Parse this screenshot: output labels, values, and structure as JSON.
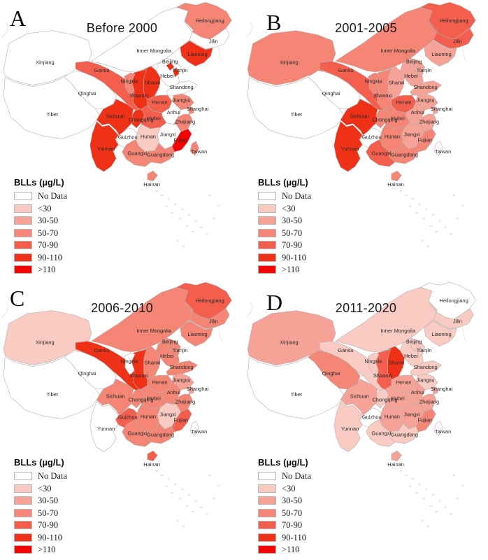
{
  "legend": {
    "title": "BLLs (µg/L)",
    "items": [
      {
        "label": "No Data",
        "category": "nodata",
        "color": "#FFFFFF"
      },
      {
        "label": "<30",
        "category": "lt30",
        "color": "#F9CBC2"
      },
      {
        "label": "30-50",
        "category": "c30_50",
        "color": "#F7A296"
      },
      {
        "label": "50-70",
        "category": "c50_70",
        "color": "#F58575"
      },
      {
        "label": "70-90",
        "category": "c70_90",
        "color": "#F35E4D"
      },
      {
        "label": "90-110",
        "category": "c90_110",
        "color": "#EF3118"
      },
      {
        "label": ">110",
        "category": "gt110",
        "color": "#F80000"
      }
    ]
  },
  "provinces": [
    "Xinjiang",
    "Tibet",
    "Qinghai",
    "Gansu",
    "Inner Mongolia",
    "Heilongjiang",
    "Jilin",
    "Liaoning",
    "Hebei",
    "Shanxi",
    "Shaanxi",
    "Ningxia",
    "Shandong",
    "Henan",
    "Jiangsu",
    "Anhui",
    "Hubei",
    "Sichuan",
    "Chongqing",
    "Guizhou",
    "Yunnan",
    "Hunan",
    "Jiangxi",
    "Zhejiang",
    "Fujian",
    "Taiwan",
    "Guangdong",
    "Guangxi",
    "Hainan",
    "Beijing",
    "Tianjin",
    "Shanghai"
  ],
  "panels": [
    {
      "letter": "A",
      "title": "Before 2000",
      "categories": {
        "Xinjiang": "nodata",
        "Tibet": "nodata",
        "Qinghai": "nodata",
        "Gansu": "c70_90",
        "Inner Mongolia": "nodata",
        "Heilongjiang": "c50_70",
        "Jilin": "nodata",
        "Liaoning": "c90_110",
        "Hebei": "nodata",
        "Shanxi": "c90_110",
        "Shaanxi": "c90_110",
        "Ningxia": "c50_70",
        "Shandong": "nodata",
        "Henan": "c70_90",
        "Jiangsu": "c50_70",
        "Anhui": "nodata",
        "Hubei": "c70_90",
        "Sichuan": "c90_110",
        "Chongqing": "c90_110",
        "Guizhou": "nodata",
        "Yunnan": "c90_110",
        "Hunan": "lt30",
        "Jiangxi": "nodata",
        "Zhejiang": "c50_70",
        "Fujian": "gt110",
        "Taiwan": "c50_70",
        "Guangdong": "c50_70",
        "Guangxi": "c50_70",
        "Hainan": "c50_70",
        "Beijing": "c90_110",
        "Tianjin": "c90_110",
        "Shanghai": "c50_70"
      }
    },
    {
      "letter": "B",
      "title": "2001-2005",
      "categories": {
        "Xinjiang": "c50_70",
        "Tibet": "nodata",
        "Qinghai": "nodata",
        "Gansu": "c70_90",
        "Inner Mongolia": "c50_70",
        "Heilongjiang": "c70_90",
        "Jilin": "c70_90",
        "Liaoning": "c30_50",
        "Hebei": "c30_50",
        "Shanxi": "c30_50",
        "Shaanxi": "c50_70",
        "Ningxia": "c50_70",
        "Shandong": "c30_50",
        "Henan": "c70_90",
        "Jiangsu": "c30_50",
        "Anhui": "c30_50",
        "Hubei": "c50_70",
        "Sichuan": "c90_110",
        "Chongqing": "c50_70",
        "Guizhou": "nodata",
        "Yunnan": "c90_110",
        "Hunan": "c50_70",
        "Jiangxi": "c30_50",
        "Zhejiang": "c30_50",
        "Fujian": "c50_70",
        "Taiwan": "nodata",
        "Guangdong": "c50_70",
        "Guangxi": "c70_90",
        "Hainan": "c50_70",
        "Beijing": "c30_50",
        "Tianjin": "c30_50",
        "Shanghai": "c30_50"
      }
    },
    {
      "letter": "C",
      "title": "2006-2010",
      "categories": {
        "Xinjiang": "lt30",
        "Tibet": "nodata",
        "Qinghai": "nodata",
        "Gansu": "c90_110",
        "Inner Mongolia": "c50_70",
        "Heilongjiang": "c70_90",
        "Jilin": "c50_70",
        "Liaoning": "c50_70",
        "Hebei": "c50_70",
        "Shanxi": "c50_70",
        "Shaanxi": "c90_110",
        "Ningxia": "nodata",
        "Shandong": "c50_70",
        "Henan": "c50_70",
        "Jiangsu": "c30_50",
        "Anhui": "c50_70",
        "Hubei": "c50_70",
        "Sichuan": "c50_70",
        "Chongqing": "c50_70",
        "Guizhou": "c70_90",
        "Yunnan": "nodata",
        "Hunan": "c50_70",
        "Jiangxi": "lt30",
        "Zhejiang": "c50_70",
        "Fujian": "c70_90",
        "Taiwan": "nodata",
        "Guangdong": "c50_70",
        "Guangxi": "c50_70",
        "Hainan": "c70_90",
        "Beijing": "c50_70",
        "Tianjin": "c50_70",
        "Shanghai": "c30_50"
      }
    },
    {
      "letter": "D",
      "title": "2011-2020",
      "categories": {
        "Xinjiang": "c30_50",
        "Tibet": "nodata",
        "Qinghai": "c50_70",
        "Gansu": "lt30",
        "Inner Mongolia": "lt30",
        "Heilongjiang": "nodata",
        "Jilin": "lt30",
        "Liaoning": "lt30",
        "Hebei": "lt30",
        "Shanxi": "c90_110",
        "Shaanxi": "c70_90",
        "Ningxia": "lt30",
        "Shandong": "lt30",
        "Henan": "c30_50",
        "Jiangsu": "lt30",
        "Anhui": "c30_50",
        "Hubei": "c30_50",
        "Sichuan": "c30_50",
        "Chongqing": "lt30",
        "Guizhou": "nodata",
        "Yunnan": "lt30",
        "Hunan": "c30_50",
        "Jiangxi": "c30_50",
        "Zhejiang": "c30_50",
        "Fujian": "c50_70",
        "Taiwan": "nodata",
        "Guangdong": "lt30",
        "Guangxi": "lt30",
        "Hainan": "c30_50",
        "Beijing": "lt30",
        "Tianjin": "lt30",
        "Shanghai": "c30_50"
      }
    }
  ]
}
